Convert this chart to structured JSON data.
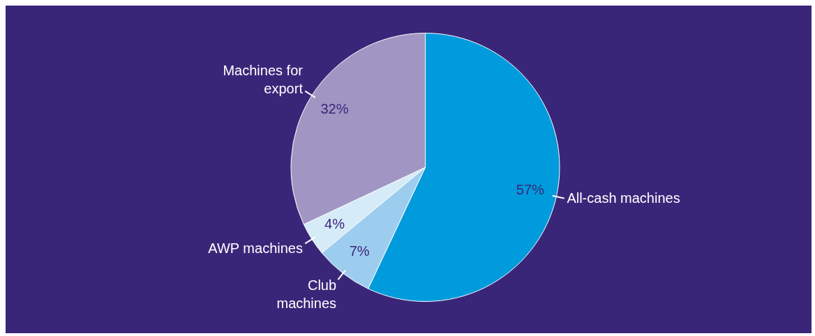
{
  "chart_data": {
    "type": "pie",
    "categories": [
      "All-cash machines",
      "Club\nmachines",
      "AWP machines",
      "Machines for\nexport"
    ],
    "values": [
      57,
      7,
      4,
      32
    ],
    "value_labels": [
      "57%",
      "7%",
      "4%",
      "32%"
    ],
    "colors": [
      "#009bdc",
      "#9dcdee",
      "#d6ebf8",
      "#a196c3"
    ],
    "legend": false
  }
}
